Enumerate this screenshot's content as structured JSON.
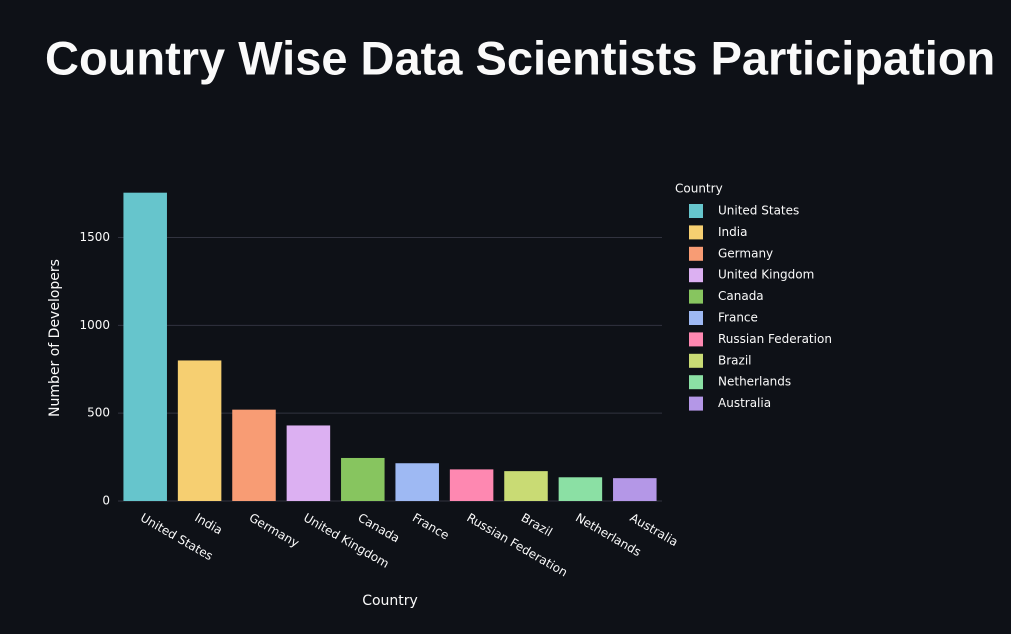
{
  "chart_data": {
    "type": "bar",
    "title": "Country Wise Data Scientists Participation",
    "x_label": "Country",
    "y_label": "Number of Developers",
    "legend_title": "Country",
    "categories": [
      "United States",
      "India",
      "Germany",
      "United Kingdom",
      "Canada",
      "France",
      "Russian Federation",
      "Brazil",
      "Netherlands",
      "Australia"
    ],
    "values": [
      1755,
      800,
      520,
      430,
      245,
      215,
      180,
      170,
      135,
      130
    ],
    "colors": [
      "#66C5CC",
      "#F6CF71",
      "#F89C74",
      "#DCB0F2",
      "#87C55F",
      "#9EB9F3",
      "#FE88B1",
      "#C9DB74",
      "#8BE0A4",
      "#B497E7"
    ],
    "ylim": [
      0,
      1850
    ],
    "yticks": [
      0,
      500,
      1000,
      1500
    ],
    "grid": true,
    "legend": "right"
  }
}
